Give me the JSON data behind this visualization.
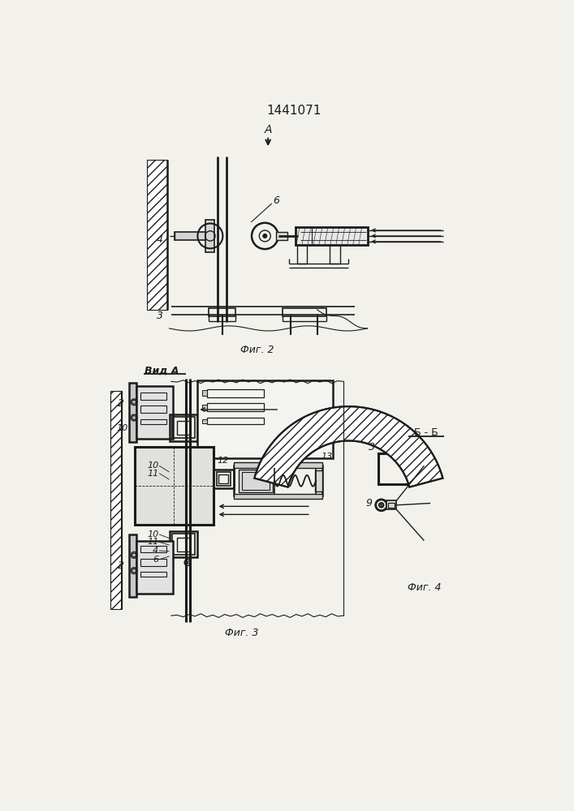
{
  "title": "1441071",
  "bg_color": "#f2f1ec",
  "lc": "#1c1c1c",
  "fig2_caption": "Фиг. 2",
  "fig3_caption": "Фиг. 3",
  "fig4_caption": "Фиг. 4",
  "view_a_label": "Вид A",
  "view_bb_label": "Б - Б"
}
